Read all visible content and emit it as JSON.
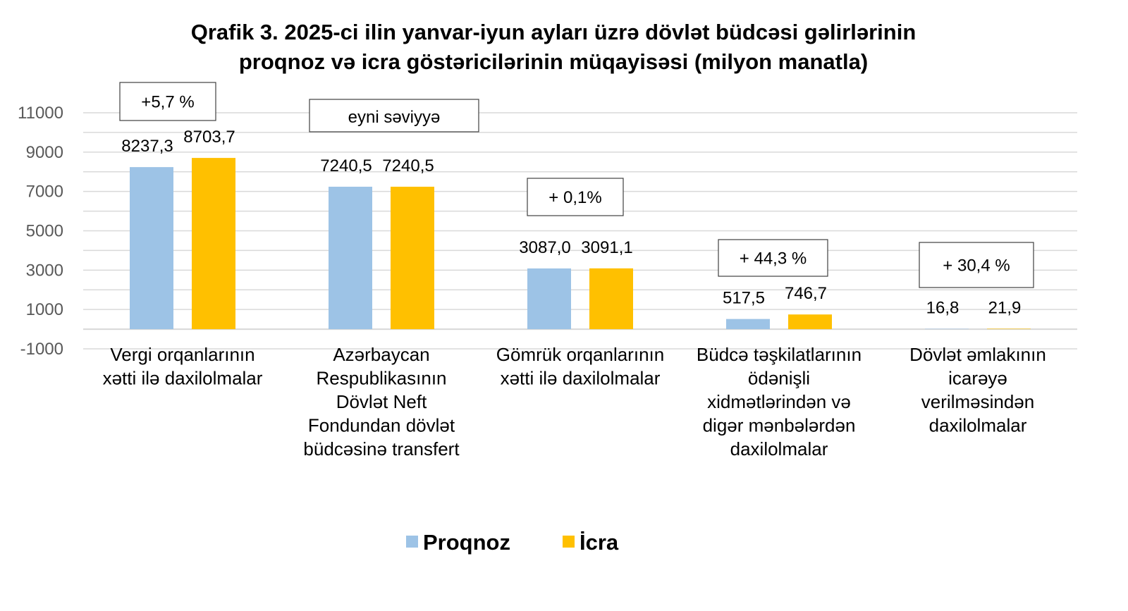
{
  "chart_data": {
    "type": "bar",
    "title_lines": [
      "Qrafik 3. 2025-ci ilin yanvar-iyun ayları üzrə dövlət büdcəsi gəlirlərinin",
      "proqnoz və icra göstəricilərinin müqayisəsi (milyon manatla)"
    ],
    "xlabel": "",
    "ylabel": "",
    "ylim": [
      -1000,
      11000
    ],
    "yticks": [
      -1000,
      1000,
      3000,
      5000,
      7000,
      9000,
      11000
    ],
    "grid": true,
    "legend_position": "bottom",
    "categories": [
      [
        "Vergi orqanlarının",
        "xətti ilə daxilolmalar"
      ],
      [
        "Azərbaycan",
        "Respublikasının",
        "Dövlət Neft",
        "Fondundan dövlət",
        "büdcəsinə transfert"
      ],
      [
        "Gömrük orqanlarının",
        "xətti ilə daxilolmalar"
      ],
      [
        "Büdcə təşkilatlarının",
        "ödənişli",
        "xidmətlərindən və",
        "digər mənbələrdən",
        "daxilolmalar"
      ],
      [
        "Dövlət əmlakının",
        "icarəyə",
        "verilməsindən",
        "daxilolmalar"
      ]
    ],
    "series": [
      {
        "name": "Proqnoz",
        "color": "#9DC3E6",
        "values": [
          8237.3,
          7240.5,
          3087.0,
          517.5,
          16.8
        ],
        "labels": [
          "8237,3",
          "7240,5",
          "3087,0",
          "517,5",
          "16,8"
        ]
      },
      {
        "name": "İcra",
        "color": "#FFC000",
        "values": [
          8703.7,
          7240.5,
          3091.1,
          746.7,
          21.9
        ],
        "labels": [
          "8703,7",
          "7240,5",
          "3091,1",
          "746,7",
          "21,9"
        ]
      }
    ],
    "annotations": [
      "+5,7 %",
      "eyni səviyyə",
      "+ 0,1%",
      "+ 44,3 %",
      "+ 30,4 %"
    ]
  }
}
